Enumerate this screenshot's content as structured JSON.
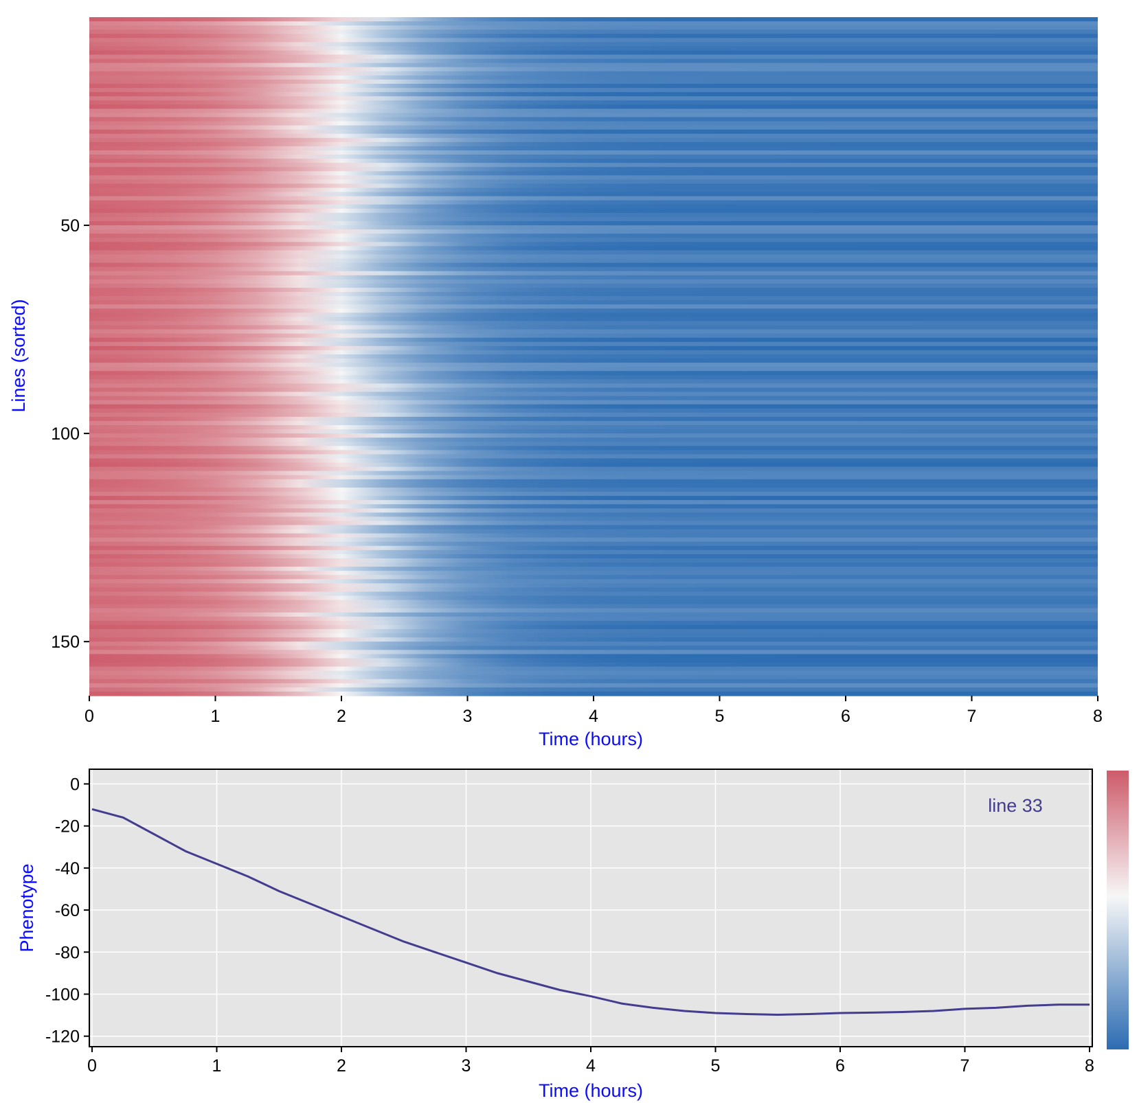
{
  "colors": {
    "high": "#cd5b6a",
    "mid": "#f7f7f7",
    "low": "#2c6cb2",
    "axis_title": "#0b0bff",
    "line": "#443c8e",
    "panel_bg": "#e5e5e5"
  },
  "chart_data": [
    {
      "type": "heatmap",
      "xlabel": "Time (hours)",
      "ylabel": "Lines (sorted)",
      "xlim": [
        0,
        8
      ],
      "ylim": [
        0,
        163
      ],
      "xticks": [
        0,
        1,
        2,
        3,
        4,
        5,
        6,
        7,
        8
      ],
      "yticks": [
        50,
        100,
        150
      ],
      "rows": 163,
      "colormap": "red-white-blue (diverging)",
      "description_of_values": "each row is a line; color encodes phenotype, red near time 0 transitioning to white around 1.5-2.5 h and blue after ~3 h"
    },
    {
      "type": "line",
      "xlabel": "Time (hours)",
      "ylabel": "Phenotype",
      "xlim": [
        0,
        8
      ],
      "ylim": [
        -125,
        7
      ],
      "xticks": [
        0,
        1,
        2,
        3,
        4,
        5,
        6,
        7,
        8
      ],
      "yticks": [
        0,
        -20,
        -40,
        -60,
        -80,
        -100,
        -120
      ],
      "grid": true,
      "legend_position": "top-right",
      "series": [
        {
          "name": "line 33",
          "x": [
            0,
            0.25,
            0.5,
            0.75,
            1,
            1.25,
            1.5,
            1.75,
            2,
            2.25,
            2.5,
            2.75,
            3,
            3.25,
            3.5,
            3.75,
            4,
            4.25,
            4.5,
            4.75,
            5,
            5.25,
            5.5,
            5.75,
            6,
            6.25,
            6.5,
            6.75,
            7,
            7.25,
            7.5,
            7.75,
            8
          ],
          "y": [
            -12,
            -16,
            -24,
            -32,
            -38,
            -44,
            -51,
            -57,
            -63,
            -69,
            -75,
            -80,
            -85,
            -90,
            -94,
            -98,
            -101,
            -104.5,
            -106.5,
            -108,
            -109,
            -109.5,
            -109.8,
            -109.5,
            -109,
            -108.8,
            -108.5,
            -108,
            -107,
            -106.5,
            -105.5,
            -105,
            -105
          ]
        }
      ]
    }
  ],
  "colorbar": {
    "orientation": "vertical",
    "top_color": "high",
    "bottom_color": "low"
  }
}
